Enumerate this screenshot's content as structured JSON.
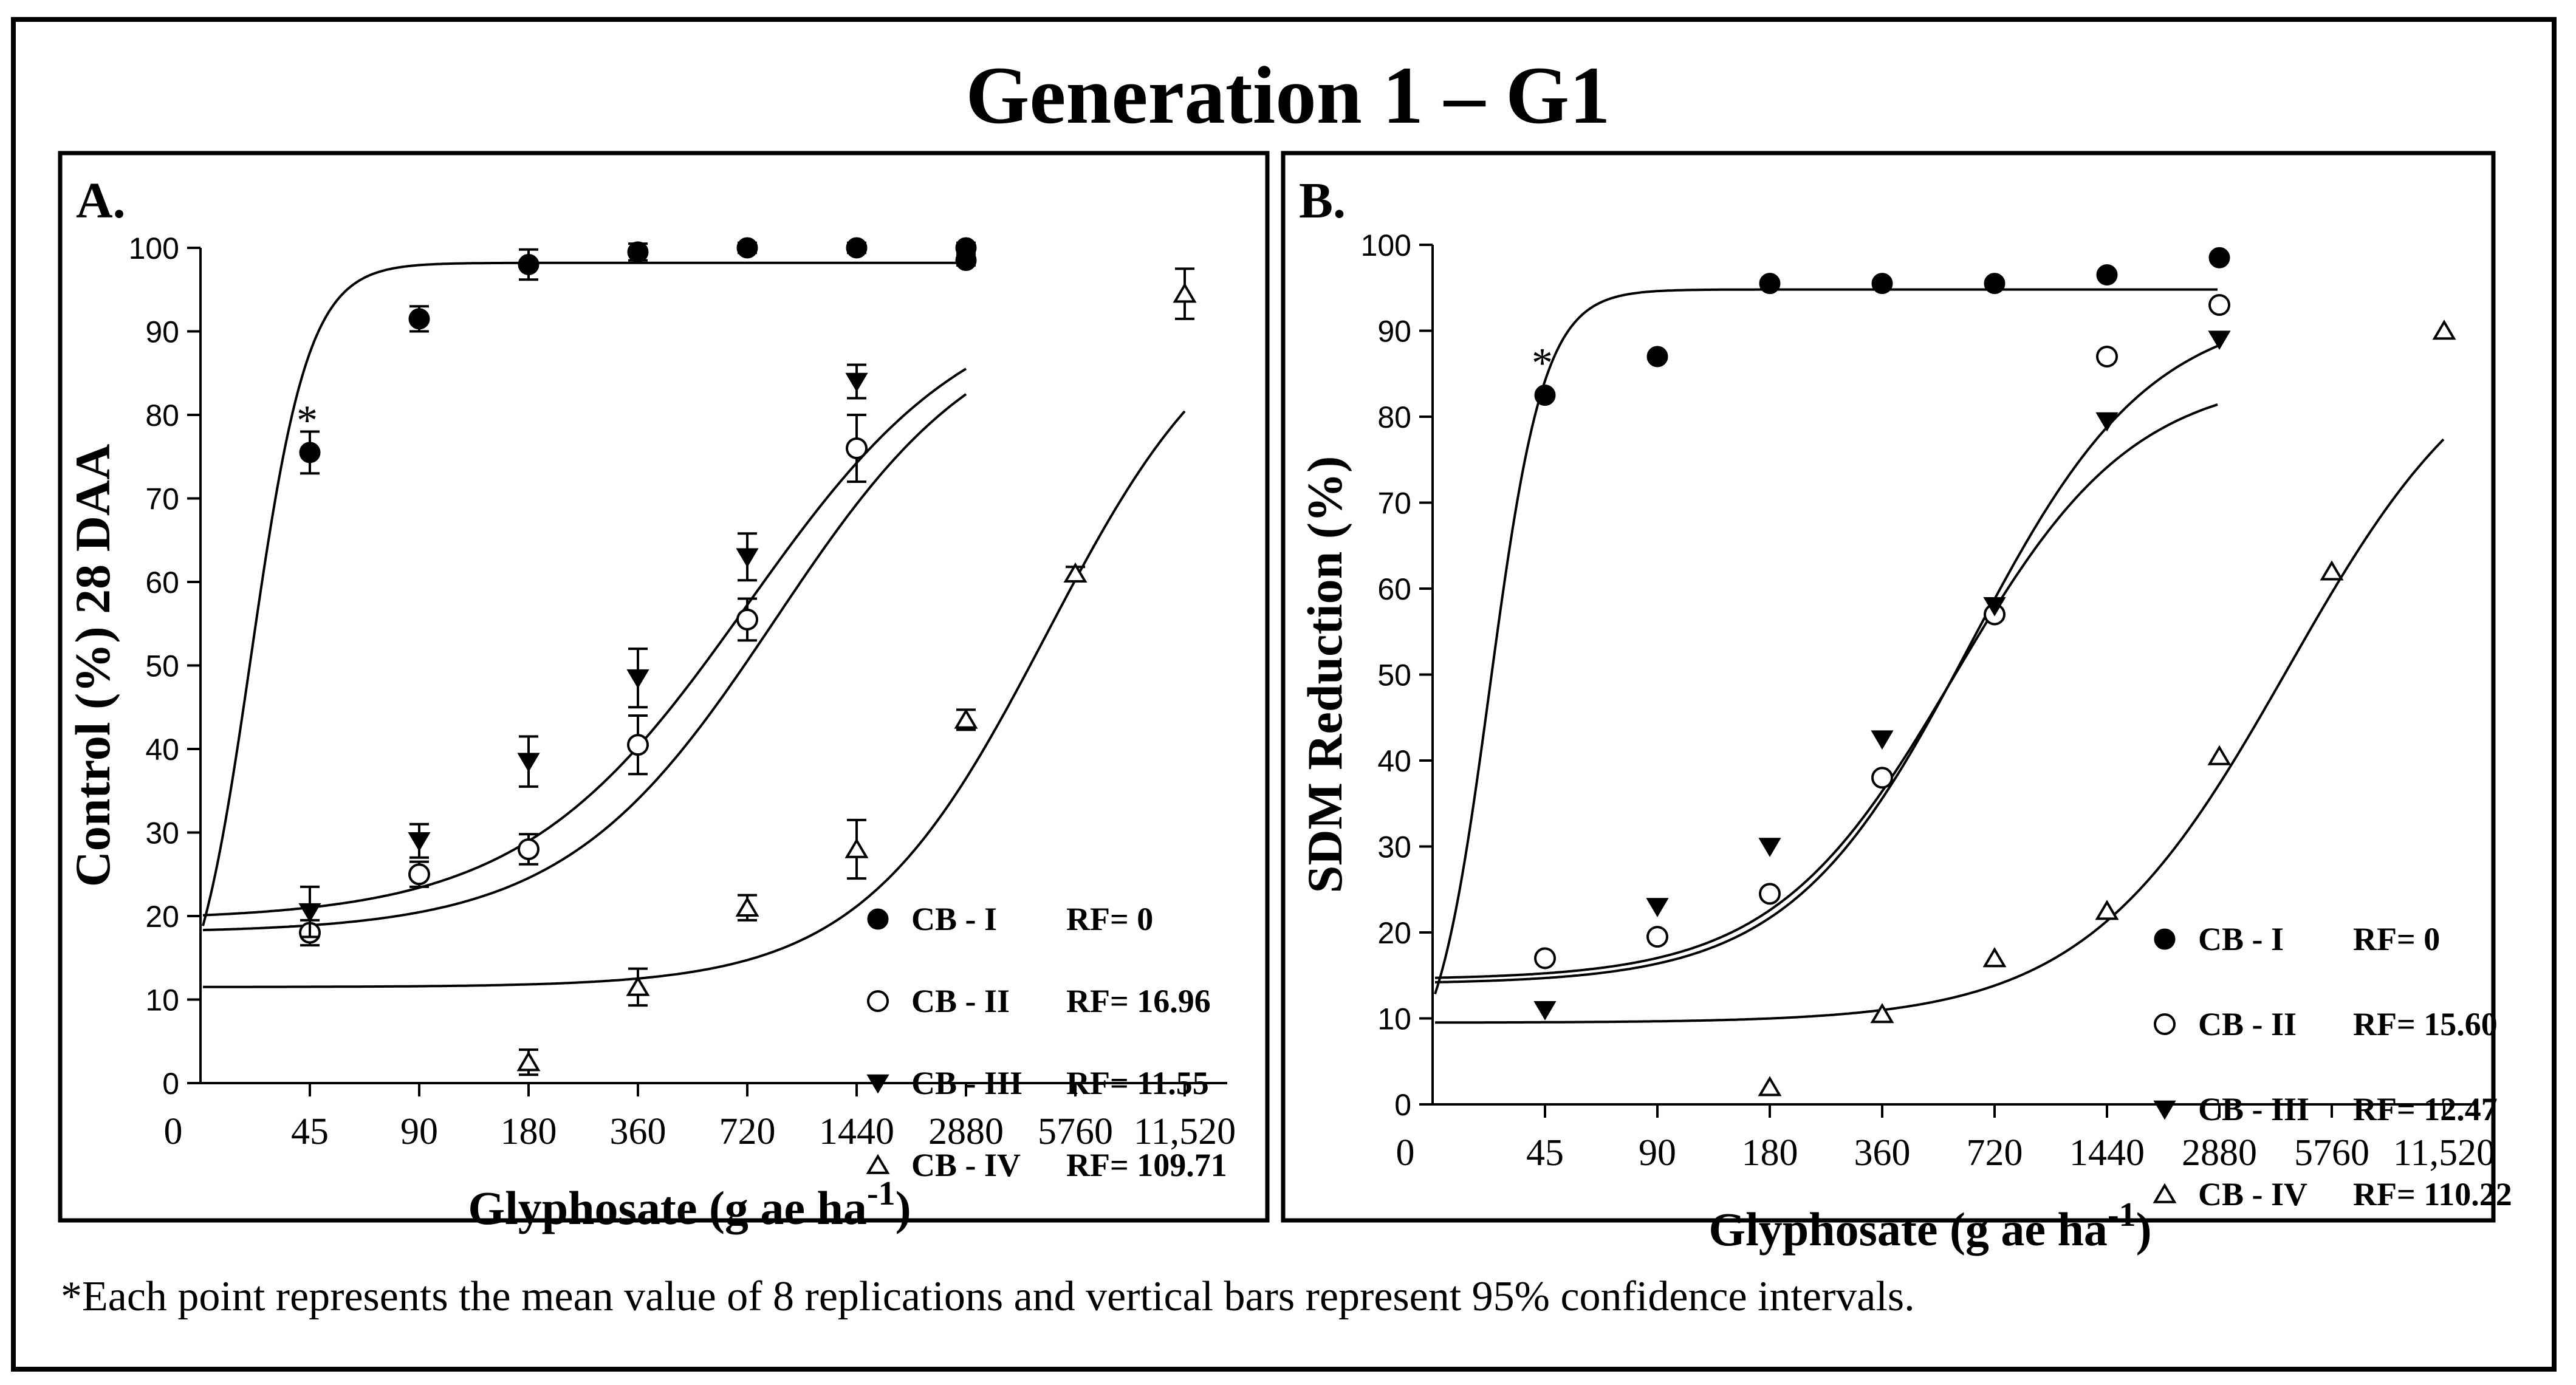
{
  "title": "Generation 1 – G1",
  "footnote": "*Each point represents the mean value of 8 replications and vertical bars represent 95% confidence intervals.",
  "chart_data": [
    {
      "type": "scatter",
      "panel_label": "A.",
      "ylabel": "Control (%) 28 DAA",
      "xlabel_main": "Glyphosate (g ae ha",
      "xlabel_sup": "-1",
      "xlabel_close": ")",
      "ylim": [
        0,
        100
      ],
      "yticks": [
        0,
        10,
        20,
        30,
        40,
        50,
        60,
        70,
        80,
        90,
        100
      ],
      "x_tick_labels": [
        "0",
        "45",
        "90",
        "180",
        "360",
        "720",
        "1440",
        "2880",
        "5760",
        "11,520"
      ],
      "annotation": "*",
      "series": [
        {
          "name": "CB - I",
          "rf_label": "RF= 0",
          "marker": "filled-circle",
          "x": [
            45,
            90,
            180,
            360,
            720,
            1440,
            2880,
            2880
          ],
          "y": [
            75.5,
            91.5,
            98,
            99.5,
            100,
            100,
            100,
            98.5
          ],
          "err": [
            2.5,
            1.5,
            1.8,
            1.0,
            0.6,
            0.6,
            0.6,
            0.6
          ],
          "fit": {
            "bottom": 4,
            "top": 98.2,
            "ed50": 31,
            "slope": 5.5
          }
        },
        {
          "name": "CB - II",
          "rf_label": "RF= 16.96",
          "marker": "open-circle",
          "x": [
            45,
            90,
            180,
            360,
            720,
            1440
          ],
          "y": [
            18,
            25,
            28,
            40.5,
            55.5,
            76
          ],
          "err": [
            1.5,
            1.5,
            1.8,
            3.5,
            2.5,
            4.0
          ],
          "fit": {
            "bottom": 18,
            "top": 93,
            "ed50": 860,
            "slope": 1.5
          }
        },
        {
          "name": "CB - III",
          "rf_label": "RF= 11.55",
          "marker": "filled-triangle-down",
          "x": [
            45,
            90,
            180,
            360,
            720,
            1440
          ],
          "y": [
            20.5,
            29,
            38.5,
            48.5,
            63,
            84
          ],
          "err": [
            3.0,
            2.0,
            3.0,
            3.5,
            2.8,
            2.0
          ],
          "fit": {
            "bottom": 19.5,
            "top": 95,
            "ed50": 720,
            "slope": 1.4
          }
        },
        {
          "name": "CB - IV",
          "rf_label": "RF= 109.71",
          "marker": "open-triangle-up",
          "x": [
            180,
            360,
            720,
            1440,
            2880,
            5760,
            11520
          ],
          "y": [
            2.5,
            11.5,
            21,
            28,
            43.5,
            61,
            94.5
          ],
          "err": [
            1.5,
            2.2,
            1.5,
            3.5,
            1.2,
            0.8,
            3.0
          ],
          "fit": {
            "bottom": 11.5,
            "top": 96,
            "ed50": 4800,
            "slope": 1.7
          }
        }
      ]
    },
    {
      "type": "scatter",
      "panel_label": "B.",
      "ylabel": "SDM Reduction (%)",
      "xlabel_main": "Glyphosate (g ae ha",
      "xlabel_sup": "-1",
      "xlabel_close": ")",
      "ylim": [
        0,
        100
      ],
      "yticks": [
        0,
        10,
        20,
        30,
        40,
        50,
        60,
        70,
        80,
        90,
        100
      ],
      "x_tick_labels": [
        "0",
        "45",
        "90",
        "180",
        "360",
        "720",
        "1440",
        "2880",
        "5760",
        "11,520"
      ],
      "annotation": "*",
      "series": [
        {
          "name": "CB - I",
          "rf_label": "RF= 0",
          "marker": "filled-circle",
          "x": [
            45,
            90,
            180,
            360,
            720,
            1440,
            2880
          ],
          "y": [
            82.5,
            87,
            95.5,
            95.5,
            95.5,
            96.5,
            98.5
          ],
          "fit": {
            "bottom": 2,
            "top": 94.8,
            "ed50": 32,
            "slope": 6.0
          }
        },
        {
          "name": "CB - II",
          "rf_label": "RF= 15.60",
          "marker": "open-circle",
          "x": [
            45,
            90,
            180,
            360,
            720,
            1440,
            2880
          ],
          "y": [
            17,
            19.5,
            24.5,
            38,
            57,
            87,
            93
          ],
          "fit": {
            "bottom": 14,
            "top": 93,
            "ed50": 620,
            "slope": 1.8
          }
        },
        {
          "name": "CB - III",
          "rf_label": "RF= 12.47",
          "marker": "filled-triangle-down",
          "x": [
            45,
            90,
            180,
            360,
            720,
            1440,
            2880
          ],
          "y": [
            11,
            23,
            30,
            42.5,
            58,
            79.5,
            89
          ],
          "fit": {
            "bottom": 14.5,
            "top": 85,
            "ed50": 560,
            "slope": 1.8
          }
        },
        {
          "name": "CB - IV",
          "rf_label": "RF= 110.22",
          "marker": "open-triangle-up",
          "x": [
            180,
            360,
            720,
            1440,
            2880,
            5760,
            11520
          ],
          "y": [
            2,
            10.5,
            17,
            22.5,
            40.5,
            62,
            90
          ],
          "fit": {
            "bottom": 9.5,
            "top": 92,
            "ed50": 4400,
            "slope": 1.6
          }
        }
      ]
    }
  ]
}
